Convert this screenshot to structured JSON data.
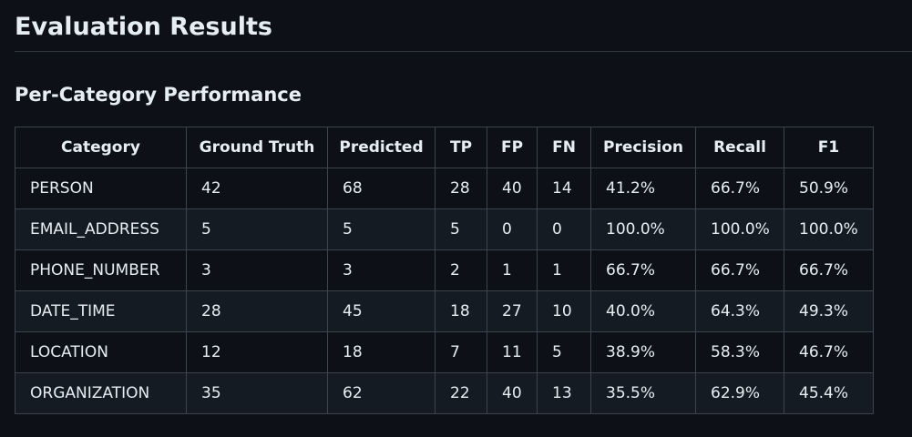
{
  "header": {
    "title": "Evaluation Results"
  },
  "section": {
    "title": "Per-Category Performance"
  },
  "table": {
    "columns": [
      "Category",
      "Ground Truth",
      "Predicted",
      "TP",
      "FP",
      "FN",
      "Precision",
      "Recall",
      "F1"
    ],
    "rows": [
      [
        "PERSON",
        "42",
        "68",
        "28",
        "40",
        "14",
        "41.2%",
        "66.7%",
        "50.9%"
      ],
      [
        "EMAIL_ADDRESS",
        "5",
        "5",
        "5",
        "0",
        "0",
        "100.0%",
        "100.0%",
        "100.0%"
      ],
      [
        "PHONE_NUMBER",
        "3",
        "3",
        "2",
        "1",
        "1",
        "66.7%",
        "66.7%",
        "66.7%"
      ],
      [
        "DATE_TIME",
        "28",
        "45",
        "18",
        "27",
        "10",
        "40.0%",
        "64.3%",
        "49.3%"
      ],
      [
        "LOCATION",
        "12",
        "18",
        "7",
        "11",
        "5",
        "38.9%",
        "58.3%",
        "46.7%"
      ],
      [
        "ORGANIZATION",
        "35",
        "62",
        "22",
        "40",
        "13",
        "35.5%",
        "62.9%",
        "45.4%"
      ]
    ]
  }
}
